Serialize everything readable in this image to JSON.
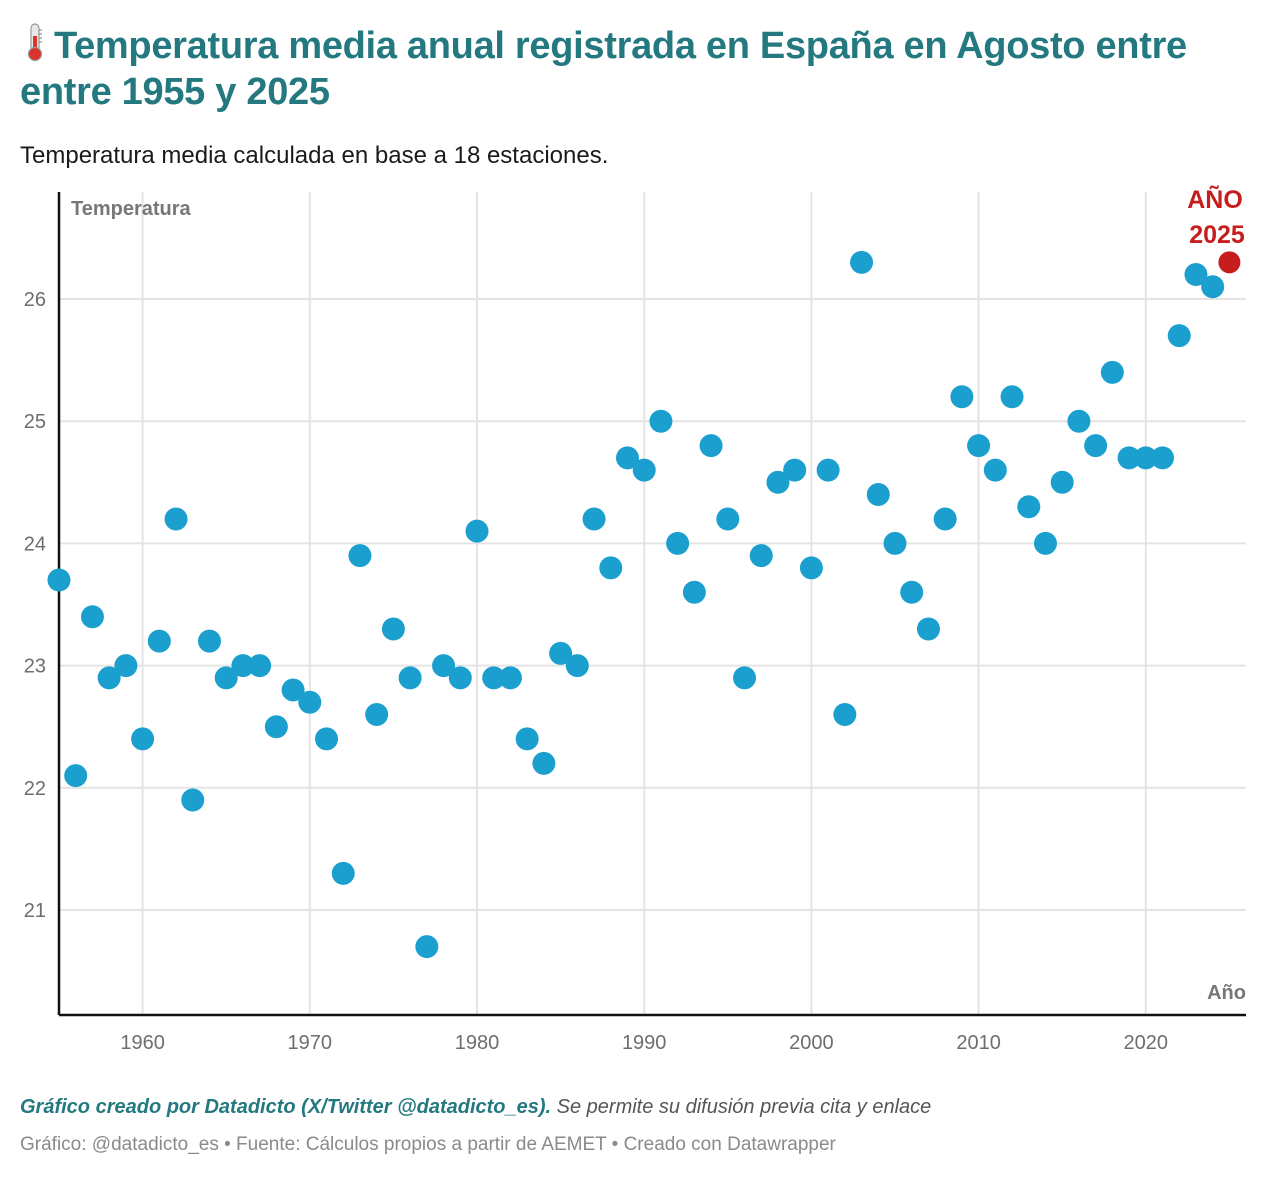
{
  "header": {
    "title_icon": "thermometer-icon",
    "title": "Temperatura media anual registrada en España en Agosto entre entre 1955 y 2025",
    "subtitle": "Temperatura media calculada en base a 18 estaciones."
  },
  "footer": {
    "credit_strong": "Gráfico creado por Datadicto (X/Twitter @datadicto_es).",
    "credit_rest": " Se permite su difusión previa cita y enlace",
    "source": "Gráfico: @datadicto_es • Fuente: Cálculos propios a partir de AEMET • Creado con Datawrapper"
  },
  "colors": {
    "title": "#23797f",
    "point": "#1a9fcf",
    "highlight": "#c71e1d",
    "grid": "#e4e4e4",
    "axis": "#111111"
  },
  "chart_data": {
    "type": "scatter",
    "title": "Temperatura media anual registrada en España en Agosto entre entre 1955 y 2025",
    "subtitle": "Temperatura media calculada en base a 18 estaciones.",
    "xlabel": "Año",
    "ylabel": "Temperatura",
    "xlim": [
      1955,
      2026
    ],
    "ylim": [
      20.2,
      26.9
    ],
    "x_ticks": [
      1960,
      1970,
      1980,
      1990,
      2000,
      2010,
      2020
    ],
    "x_tick_labels": [
      "1960",
      "1970",
      "1980",
      "1990",
      "2000",
      "2010",
      "2020"
    ],
    "y_ticks": [
      21,
      22,
      23,
      24,
      25,
      26
    ],
    "y_tick_labels": [
      "21",
      "22",
      "23",
      "24",
      "25",
      "26"
    ],
    "grid": true,
    "legend": "none",
    "x": [
      1955,
      1956,
      1957,
      1958,
      1959,
      1960,
      1961,
      1962,
      1963,
      1964,
      1965,
      1966,
      1967,
      1968,
      1969,
      1970,
      1971,
      1972,
      1973,
      1974,
      1975,
      1976,
      1977,
      1978,
      1979,
      1980,
      1981,
      1982,
      1983,
      1984,
      1985,
      1986,
      1987,
      1988,
      1989,
      1990,
      1991,
      1992,
      1993,
      1994,
      1995,
      1996,
      1997,
      1998,
      1999,
      2000,
      2001,
      2002,
      2003,
      2004,
      2005,
      2006,
      2007,
      2008,
      2009,
      2010,
      2011,
      2012,
      2013,
      2014,
      2015,
      2016,
      2017,
      2018,
      2019,
      2020,
      2021,
      2022,
      2023,
      2024
    ],
    "y": [
      23.7,
      22.1,
      23.4,
      22.9,
      23.0,
      22.4,
      23.2,
      24.2,
      21.9,
      23.2,
      22.9,
      23.0,
      23.0,
      22.5,
      22.8,
      22.7,
      22.4,
      21.3,
      23.9,
      22.6,
      23.3,
      22.9,
      20.7,
      23.0,
      22.9,
      24.1,
      22.9,
      22.9,
      22.4,
      22.2,
      23.1,
      23.0,
      24.2,
      23.8,
      24.7,
      24.6,
      25.0,
      24.0,
      23.6,
      24.8,
      24.2,
      22.9,
      23.9,
      24.5,
      24.6,
      23.8,
      24.6,
      22.6,
      26.3,
      24.4,
      24.0,
      23.6,
      23.3,
      24.2,
      25.2,
      24.8,
      24.6,
      25.2,
      24.3,
      24.0,
      24.5,
      25.0,
      24.8,
      25.4,
      24.7,
      24.7,
      24.7,
      25.7,
      26.2,
      26.1
    ],
    "highlight": {
      "x": 2025,
      "y": 26.3,
      "label_line1": "AÑO",
      "label_line2": "2025"
    }
  }
}
